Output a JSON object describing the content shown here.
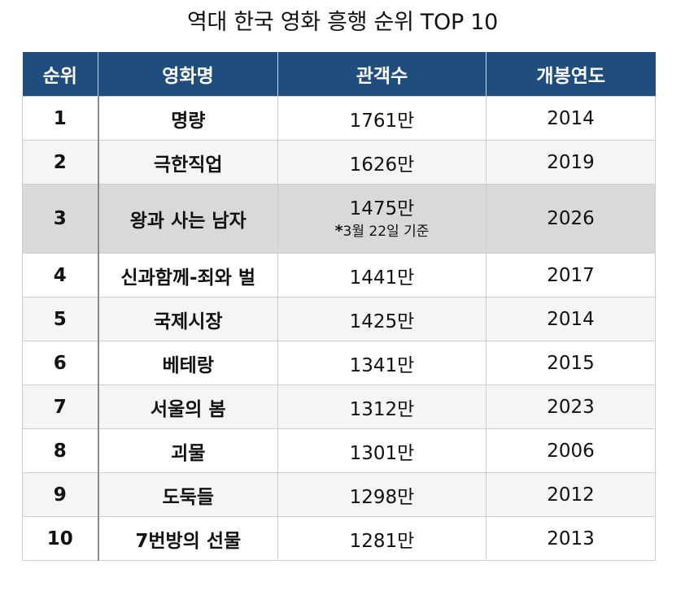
{
  "title": "역대 한국 영화 흥행 순위 TOP 10",
  "table": {
    "headers": [
      "순위",
      "영화명",
      "관객수",
      "개봉연도"
    ],
    "rows": [
      {
        "rank": "1",
        "movie": "명량",
        "audience": "1761만",
        "year": "2014"
      },
      {
        "rank": "2",
        "movie": "극한직업",
        "audience": "1626만",
        "year": "2019"
      },
      {
        "rank": "3",
        "movie": "왕과 사는 남자",
        "audience": "1475만",
        "note_mark": "*",
        "note": "3월 22일 기준",
        "year": "2026"
      },
      {
        "rank": "4",
        "movie": "신과함께-죄와 벌",
        "audience": "1441만",
        "year": "2017"
      },
      {
        "rank": "5",
        "movie": "국제시장",
        "audience": "1425만",
        "year": "2014"
      },
      {
        "rank": "6",
        "movie": "베테랑",
        "audience": "1341만",
        "year": "2015"
      },
      {
        "rank": "7",
        "movie": "서울의 봄",
        "audience": "1312만",
        "year": "2023"
      },
      {
        "rank": "8",
        "movie": "괴물",
        "audience": "1301만",
        "year": "2006"
      },
      {
        "rank": "9",
        "movie": "도둑들",
        "audience": "1298만",
        "year": "2012"
      },
      {
        "rank": "10",
        "movie": "7번방의 선물",
        "audience": "1281만",
        "year": "2013"
      }
    ]
  },
  "colors": {
    "header_bg": "#1f4d7d",
    "highlight_row_bg": "#d9d9d9",
    "alt_row_bg": "#f5f5f5"
  }
}
